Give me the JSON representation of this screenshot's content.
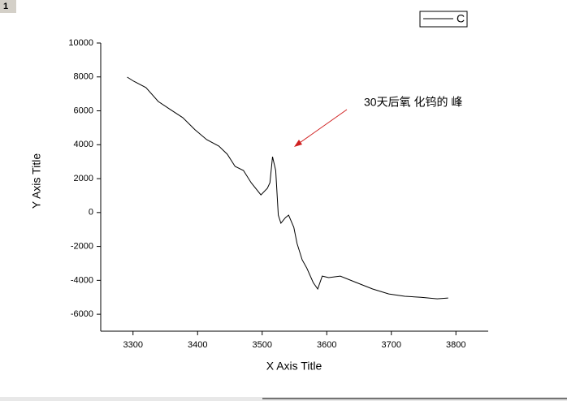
{
  "window_label": "1",
  "chart_data": {
    "type": "line",
    "xlabel": "X Axis Title",
    "ylabel": "Y Axis Title",
    "annotation": "30天后氧 化钨的 峰",
    "xlim": [
      3250,
      3850
    ],
    "xticks": [
      3300,
      3400,
      3500,
      3600,
      3700,
      3800
    ],
    "ylim": [
      -7000,
      10000
    ],
    "yticks": [
      -6000,
      -4000,
      -2000,
      0,
      2000,
      4000,
      6000,
      8000,
      10000
    ],
    "series": [
      {
        "name": "C",
        "color": "#000000",
        "x": [
          3291,
          3301,
          3320,
          3339,
          3358,
          3377,
          3396,
          3414,
          3433,
          3446,
          3458,
          3471,
          3483,
          3498,
          3508,
          3512,
          3516,
          3521,
          3525,
          3529,
          3536,
          3541,
          3549,
          3554,
          3562,
          3569,
          3579,
          3586,
          3593,
          3603,
          3621,
          3646,
          3671,
          3696,
          3721,
          3746,
          3771,
          3788
        ],
        "values": [
          7990,
          7750,
          7370,
          6550,
          6070,
          5600,
          4880,
          4300,
          3920,
          3440,
          2720,
          2480,
          1760,
          1040,
          1430,
          1760,
          3290,
          2480,
          -150,
          -630,
          -300,
          -150,
          -870,
          -1830,
          -2790,
          -3270,
          -4130,
          -4510,
          -3750,
          -3840,
          -3750,
          -4130,
          -4510,
          -4800,
          -4940,
          -5000,
          -5090,
          -5040
        ]
      }
    ]
  }
}
